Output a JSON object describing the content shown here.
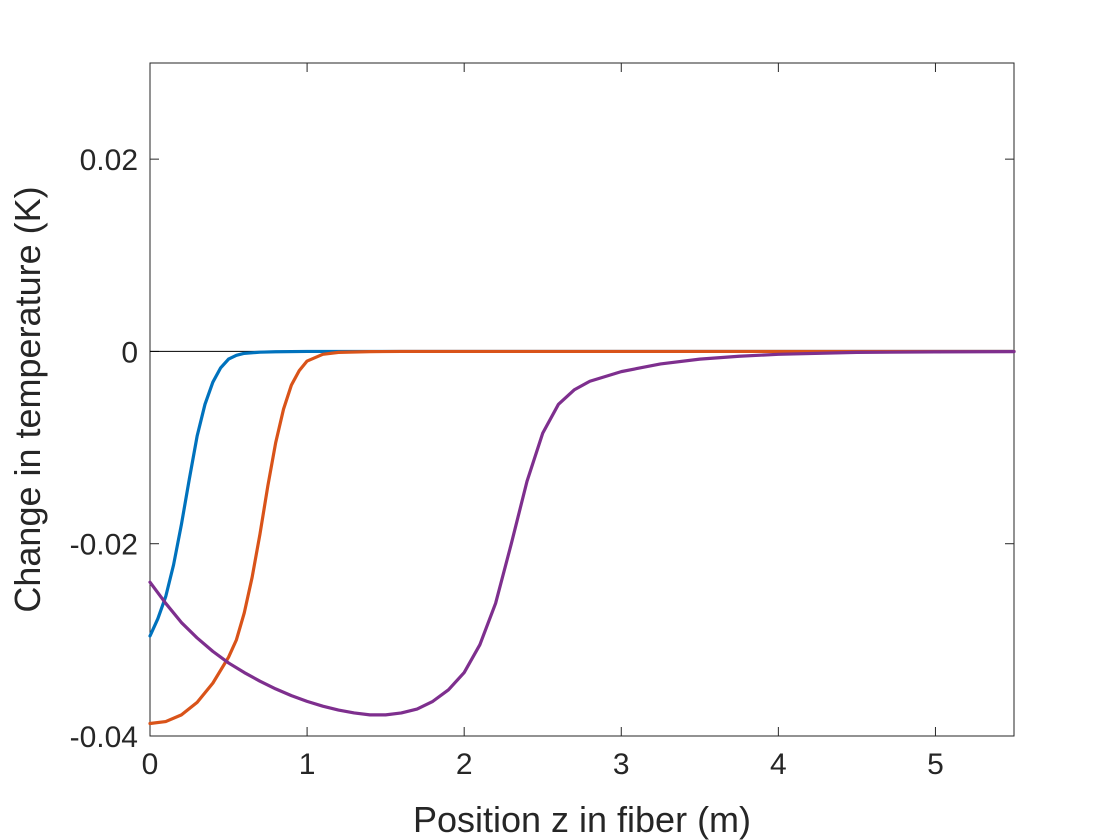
{
  "chart_data": {
    "type": "line",
    "title": "",
    "xlabel": "Position z in fiber (m)",
    "ylabel": "Change in temperature (K)",
    "xlim": [
      0,
      5.5
    ],
    "ylim": [
      -0.04,
      0.03
    ],
    "x_ticks": [
      0,
      1,
      2,
      3,
      4,
      5
    ],
    "x_tick_labels": [
      "0",
      "1",
      "2",
      "3",
      "4",
      "5"
    ],
    "y_ticks": [
      -0.04,
      -0.02,
      0,
      0.02
    ],
    "y_tick_labels": [
      "-0.04",
      "-0.02",
      "0",
      "0.02"
    ],
    "grid": false,
    "legend": "none",
    "zero_line": {
      "y": 0,
      "color": "#000000"
    },
    "series": [
      {
        "color": "#0072BD",
        "points": [
          [
            0,
            -0.0296
          ],
          [
            0.05,
            -0.0278
          ],
          [
            0.1,
            -0.0255
          ],
          [
            0.15,
            -0.0222
          ],
          [
            0.2,
            -0.018
          ],
          [
            0.25,
            -0.0133
          ],
          [
            0.3,
            -0.0088
          ],
          [
            0.35,
            -0.0055
          ],
          [
            0.4,
            -0.0032
          ],
          [
            0.45,
            -0.0017
          ],
          [
            0.5,
            -0.0008
          ],
          [
            0.55,
            -0.0004
          ],
          [
            0.6,
            -0.0002
          ],
          [
            0.7,
            -8e-05
          ],
          [
            0.8,
            -3e-05
          ],
          [
            1.0,
            0
          ],
          [
            5.5,
            0
          ]
        ]
      },
      {
        "color": "#D95319",
        "points": [
          [
            0,
            -0.0387
          ],
          [
            0.1,
            -0.0385
          ],
          [
            0.2,
            -0.0378
          ],
          [
            0.3,
            -0.0365
          ],
          [
            0.4,
            -0.0345
          ],
          [
            0.5,
            -0.0318
          ],
          [
            0.55,
            -0.03
          ],
          [
            0.6,
            -0.0272
          ],
          [
            0.65,
            -0.0235
          ],
          [
            0.7,
            -0.019
          ],
          [
            0.75,
            -0.014
          ],
          [
            0.8,
            -0.0095
          ],
          [
            0.85,
            -0.006
          ],
          [
            0.9,
            -0.0035
          ],
          [
            0.95,
            -0.002
          ],
          [
            1.0,
            -0.001
          ],
          [
            1.1,
            -0.0003
          ],
          [
            1.2,
            -0.0001
          ],
          [
            1.4,
            -2e-05
          ],
          [
            1.6,
            0
          ],
          [
            5.5,
            0
          ]
        ]
      },
      {
        "color": "#7E2F8E",
        "points": [
          [
            0,
            -0.024
          ],
          [
            0.1,
            -0.0262
          ],
          [
            0.2,
            -0.0282
          ],
          [
            0.3,
            -0.0298
          ],
          [
            0.4,
            -0.0312
          ],
          [
            0.5,
            -0.0324
          ],
          [
            0.6,
            -0.0334
          ],
          [
            0.7,
            -0.0343
          ],
          [
            0.8,
            -0.0351
          ],
          [
            0.9,
            -0.0358
          ],
          [
            1.0,
            -0.0364
          ],
          [
            1.1,
            -0.0369
          ],
          [
            1.2,
            -0.0373
          ],
          [
            1.3,
            -0.0376
          ],
          [
            1.4,
            -0.0378
          ],
          [
            1.5,
            -0.0378
          ],
          [
            1.6,
            -0.0376
          ],
          [
            1.7,
            -0.0372
          ],
          [
            1.8,
            -0.0364
          ],
          [
            1.9,
            -0.0352
          ],
          [
            2.0,
            -0.0334
          ],
          [
            2.1,
            -0.0305
          ],
          [
            2.2,
            -0.0262
          ],
          [
            2.3,
            -0.02
          ],
          [
            2.4,
            -0.0135
          ],
          [
            2.5,
            -0.0085
          ],
          [
            2.6,
            -0.0055
          ],
          [
            2.7,
            -0.004
          ],
          [
            2.8,
            -0.0031
          ],
          [
            3.0,
            -0.0021
          ],
          [
            3.25,
            -0.0013
          ],
          [
            3.5,
            -0.0008
          ],
          [
            3.75,
            -0.0005
          ],
          [
            4.0,
            -0.0003
          ],
          [
            4.5,
            -0.0001
          ],
          [
            5.0,
            -5e-05
          ],
          [
            5.5,
            -2e-05
          ]
        ]
      }
    ]
  }
}
